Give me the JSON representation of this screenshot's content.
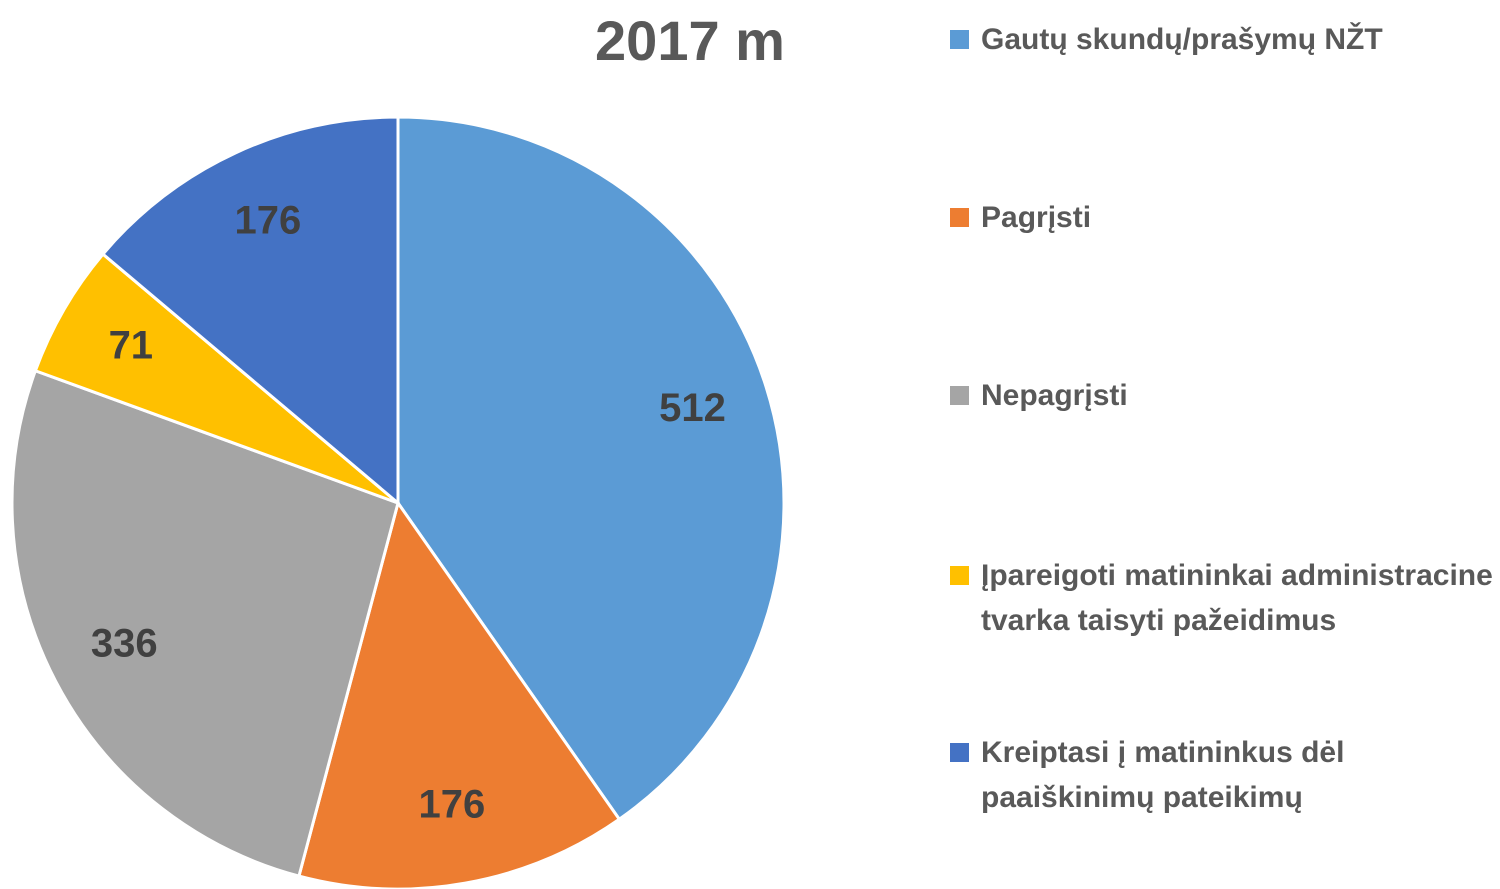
{
  "chart_data": {
    "type": "pie",
    "title": "2017 m",
    "categories": [
      "Gautų skundų/prašymų NŽT",
      "Pagrįsti",
      "Nepagrįsti",
      "Įpareigoti matininkai administracine tvarka taisyti pažeidimus",
      "Kreiptasi į matininkus dėl paaiškinimų pateikimų"
    ],
    "values": [
      512,
      176,
      336,
      71,
      176
    ],
    "colors": [
      "#5b9bd5",
      "#ed7d31",
      "#a5a5a5",
      "#ffc000",
      "#4472c4"
    ]
  }
}
